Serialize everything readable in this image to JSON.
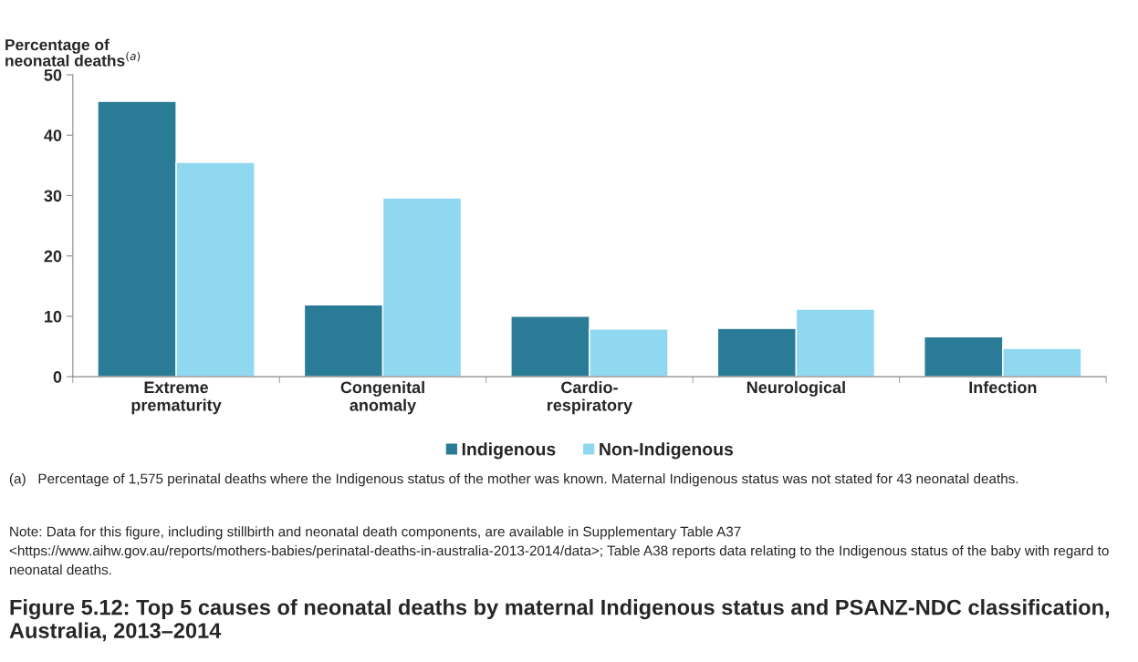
{
  "chart_data": {
    "type": "bar",
    "title": "Figure 5.12: Top 5 causes of neonatal deaths by maternal Indigenous status and PSANZ-NDC classification, Australia, 2013–2014",
    "ylabel": "Percentage of\nneonatal deaths$^{(a)}$",
    "categories": [
      "Extreme\nprematurity",
      "Congenital\nanomaly",
      "Cardio-\nrespiratory",
      "Neurological",
      "Infection"
    ],
    "series": [
      {
        "name": "Indigenous",
        "color": "#2a7b96",
        "values": [
          45.6,
          11.9,
          10.0,
          8.0,
          6.6
        ]
      },
      {
        "name": "Non-Indigenous",
        "color": "#8fd8f0",
        "values": [
          35.5,
          29.6,
          7.9,
          11.2,
          4.7
        ]
      }
    ],
    "ylim": [
      0,
      50
    ],
    "yticks": [
      0,
      10,
      20,
      30,
      40,
      50
    ],
    "grid": false,
    "legend": "bottom",
    "annotations": [
      "(a)   Percentage of 1,575 perinatal deaths where the Indigenous status of the mother was known. Maternal Indigenous status was not stated for 43 neonatal deaths.",
      "Note: Data for this figure, including stillbirth and neonatal death components, are available in Supplementary Table A37 <https://www.aihw.gov.au/reports/mothers-babies/perinatal-deaths-in-australia-2013-2014/data>; Table A38 reports data relating to the Indigenous status of the baby with regard to neonatal deaths."
    ]
  }
}
